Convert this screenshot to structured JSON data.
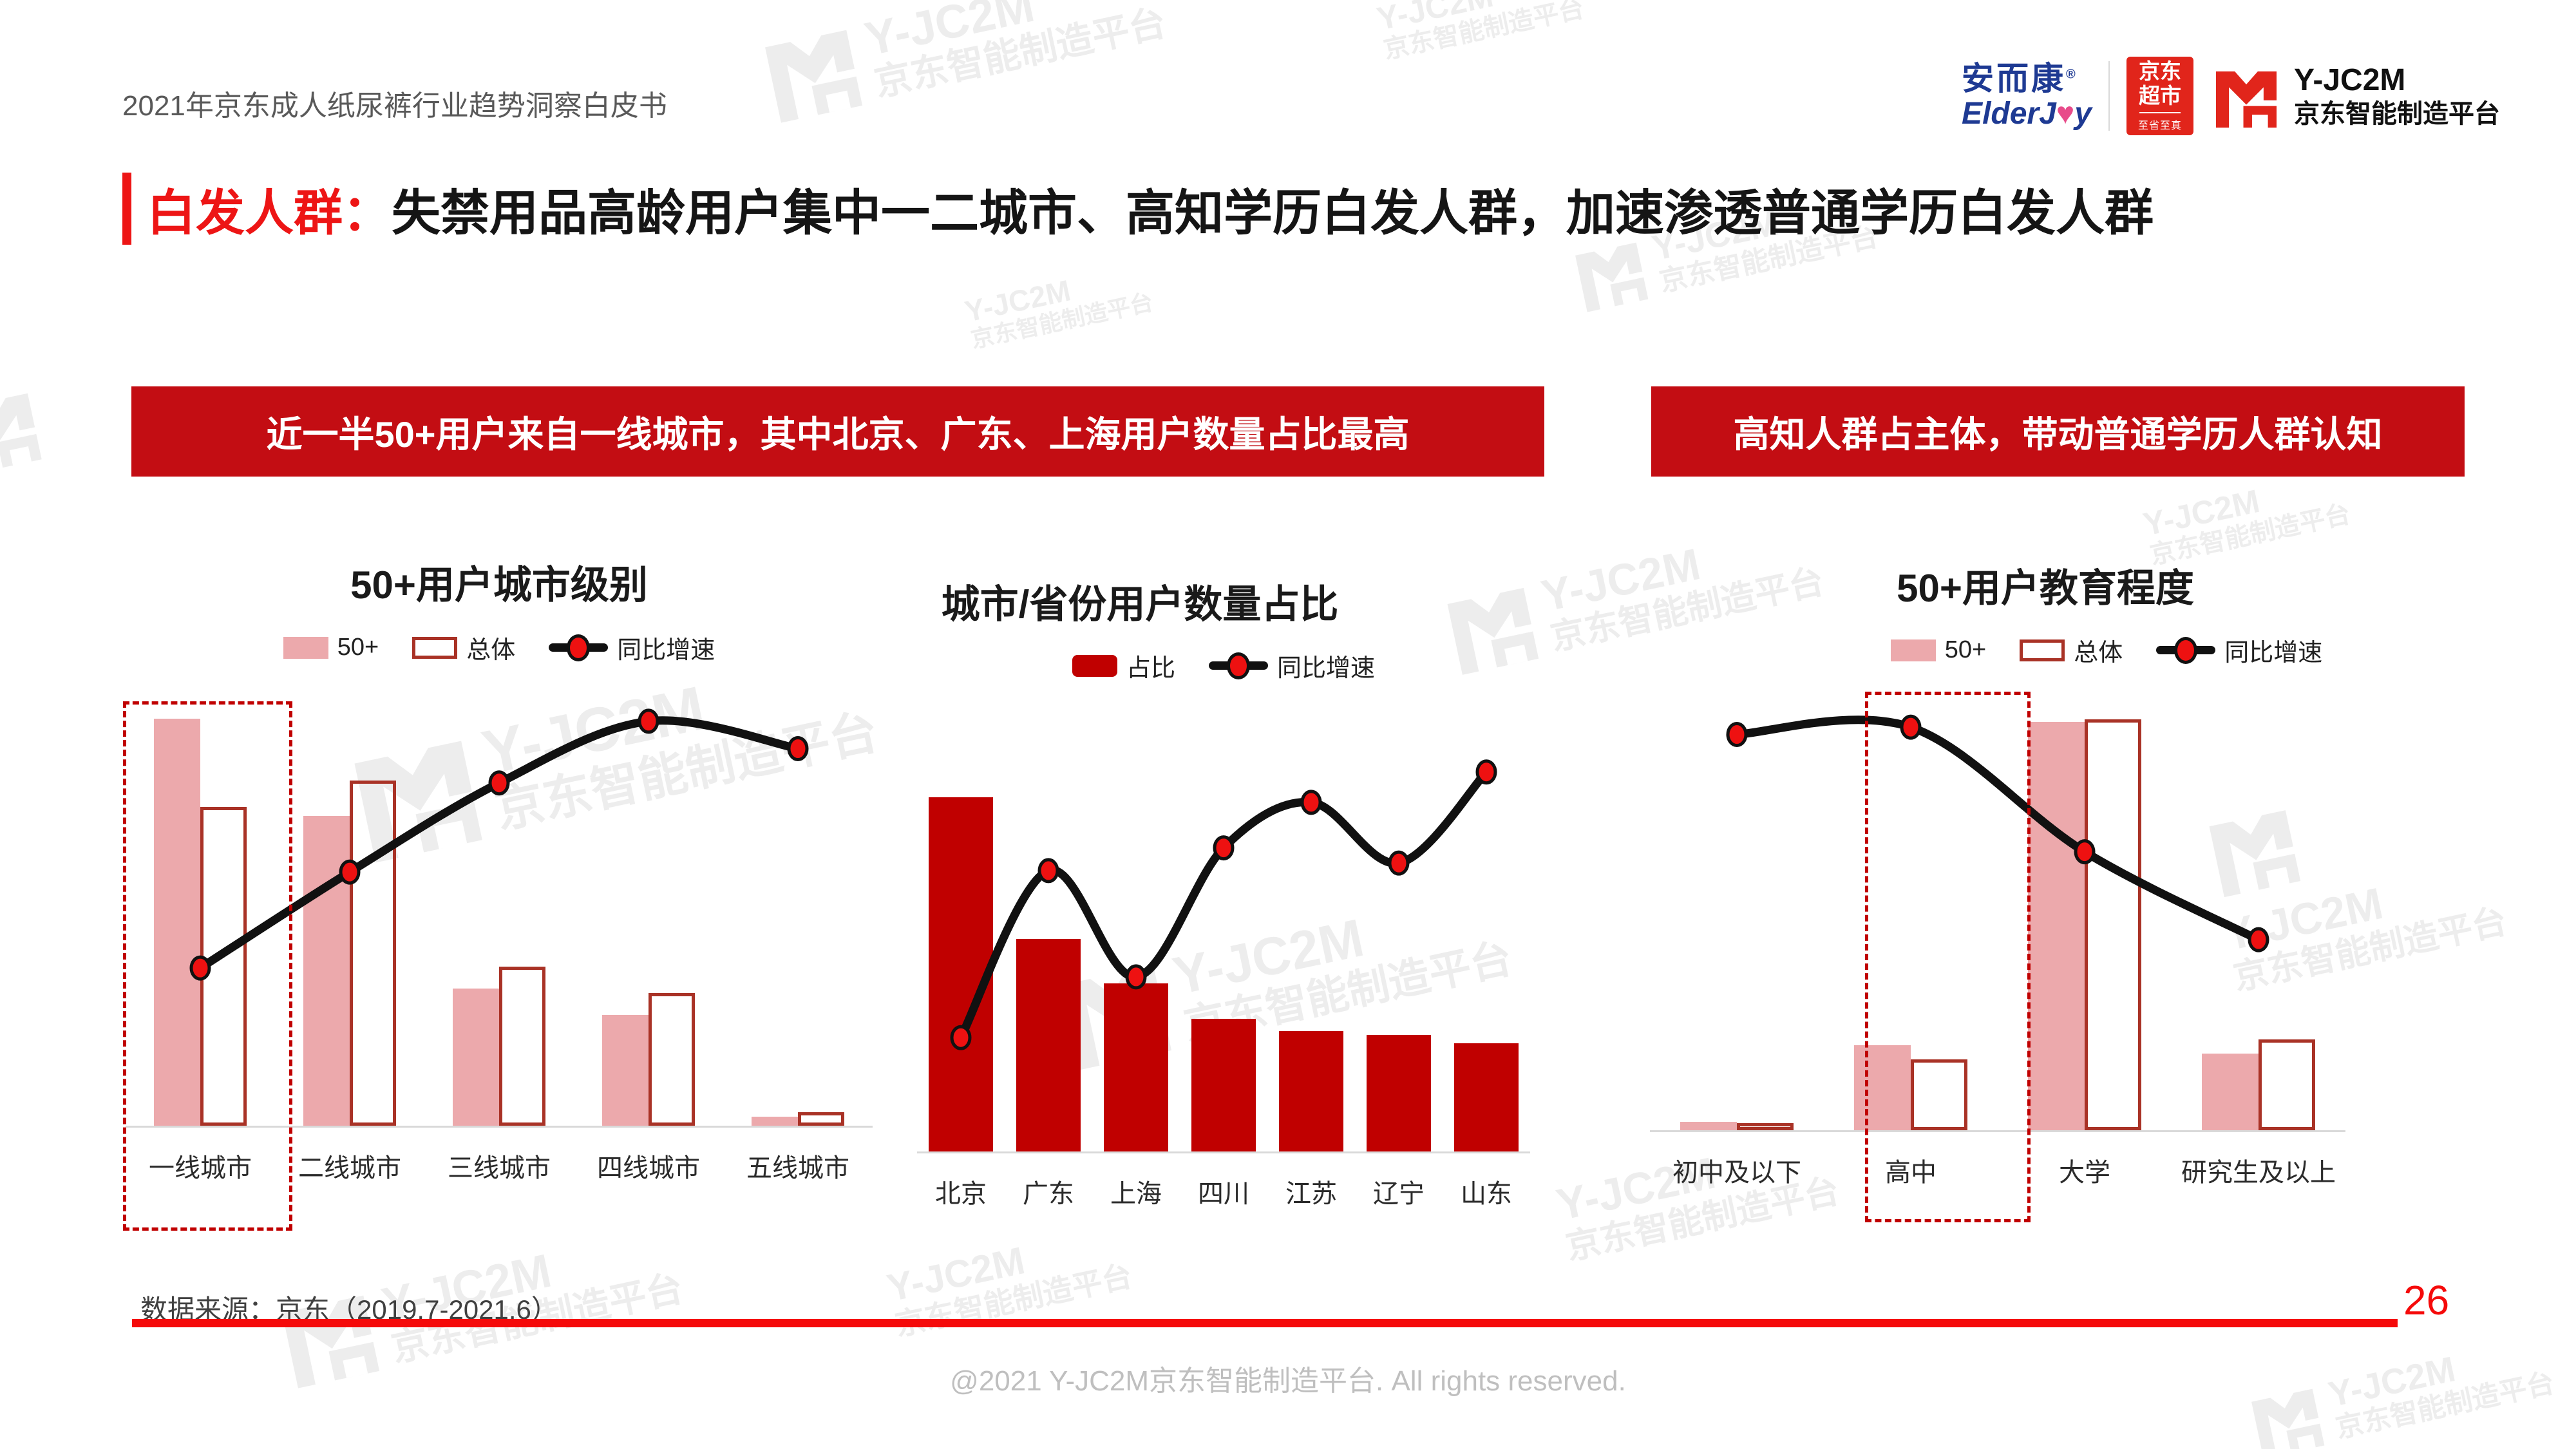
{
  "header": {
    "report_title": "2021年京东成人纸尿裤行业趋势洞察白皮书",
    "logos": {
      "elderjoy_cn": "安而康",
      "elderjoy_reg": "®",
      "elderjoy_en_pre": "ElderJ",
      "elderjoy_heart": "♥",
      "elderjoy_en_post": "y",
      "jd_badge_top": "京东",
      "jd_badge_bottom": "超市",
      "jd_badge_slogan": "至省至真",
      "platform_name": "Y-JC2M",
      "platform_sub": "京东智能制造平台"
    }
  },
  "title": {
    "highlight": "白发人群：",
    "text": "失禁用品高龄用户集中一二城市、高知学历白发人群，加速渗透普通学历白发人群"
  },
  "banners": {
    "left": "近一半50+用户来自一线城市，其中北京、广东、上海用户数量占比最高",
    "right": "高知人群占主体，带动普通学历人群认知"
  },
  "chart_data": [
    {
      "type": "bar",
      "title": "50+用户城市级别",
      "categories": [
        "一线城市",
        "二线城市",
        "三线城市",
        "四线城市",
        "五线城市"
      ],
      "series": [
        {
          "name": "50+",
          "style": "pink",
          "values": [
            46,
            35,
            15.5,
            12.5,
            1
          ]
        },
        {
          "name": "总体",
          "style": "outline",
          "values": [
            36,
            39,
            18,
            15,
            1.5
          ]
        }
      ],
      "line": {
        "name": "同比增速",
        "values": [
          23,
          37,
          50,
          59,
          55
        ]
      },
      "bar_ylim": [
        0,
        48
      ],
      "line_ylim": [
        0,
        62
      ],
      "highlight_category": "一线城市",
      "legend_position": "top",
      "grid": false
    },
    {
      "type": "bar",
      "title": "城市/省份用户数量占比",
      "categories": [
        "北京",
        "广东",
        "上海",
        "四川",
        "江苏",
        "辽宁",
        "山东"
      ],
      "series": [
        {
          "name": "占比",
          "style": "solid",
          "values": [
            20,
            12,
            9.5,
            7.5,
            6.8,
            6.6,
            6.1
          ]
        }
      ],
      "line": {
        "name": "同比增速",
        "values": [
          15,
          37,
          23,
          40,
          46,
          38,
          50
        ]
      },
      "bar_ylim": [
        0,
        24
      ],
      "line_ylim": [
        0,
        56
      ],
      "legend_position": "top",
      "grid": false
    },
    {
      "type": "bar",
      "title": "50+用户教育程度",
      "categories": [
        "初中及以下",
        "高中",
        "大学",
        "研究生及以上"
      ],
      "series": [
        {
          "name": "50+",
          "style": "pink",
          "values": [
            1.5,
            15,
            72,
            13.5
          ]
        },
        {
          "name": "总体",
          "style": "outline",
          "values": [
            1.2,
            12.5,
            72.5,
            16
          ]
        }
      ],
      "line": {
        "name": "同比增速",
        "values": [
          54,
          55,
          38,
          26
        ]
      },
      "bar_ylim": [
        0,
        75
      ],
      "line_ylim": [
        0,
        58
      ],
      "highlight_category": "高中",
      "legend_position": "top",
      "grid": false
    }
  ],
  "watermark": {
    "line1": "Y-JC2M",
    "line2": "京东智能制造平台"
  },
  "source_note": "数据来源：京东（2019.7-2021.6）",
  "page_number": "26",
  "footer": "@2021 Y-JC2M京东智能制造平台. All rights reserved.",
  "colors": {
    "accent_red": "#ED1515",
    "banner_red": "#C30D13",
    "bar_pink": "#ECA9AC",
    "bar_outline": "#A93226",
    "bar_solid": "#C00000",
    "line_black": "#111111",
    "dot_red": "#EE1111",
    "jd_red": "#E1251B",
    "elderjoy_blue": "#1E3A93"
  }
}
